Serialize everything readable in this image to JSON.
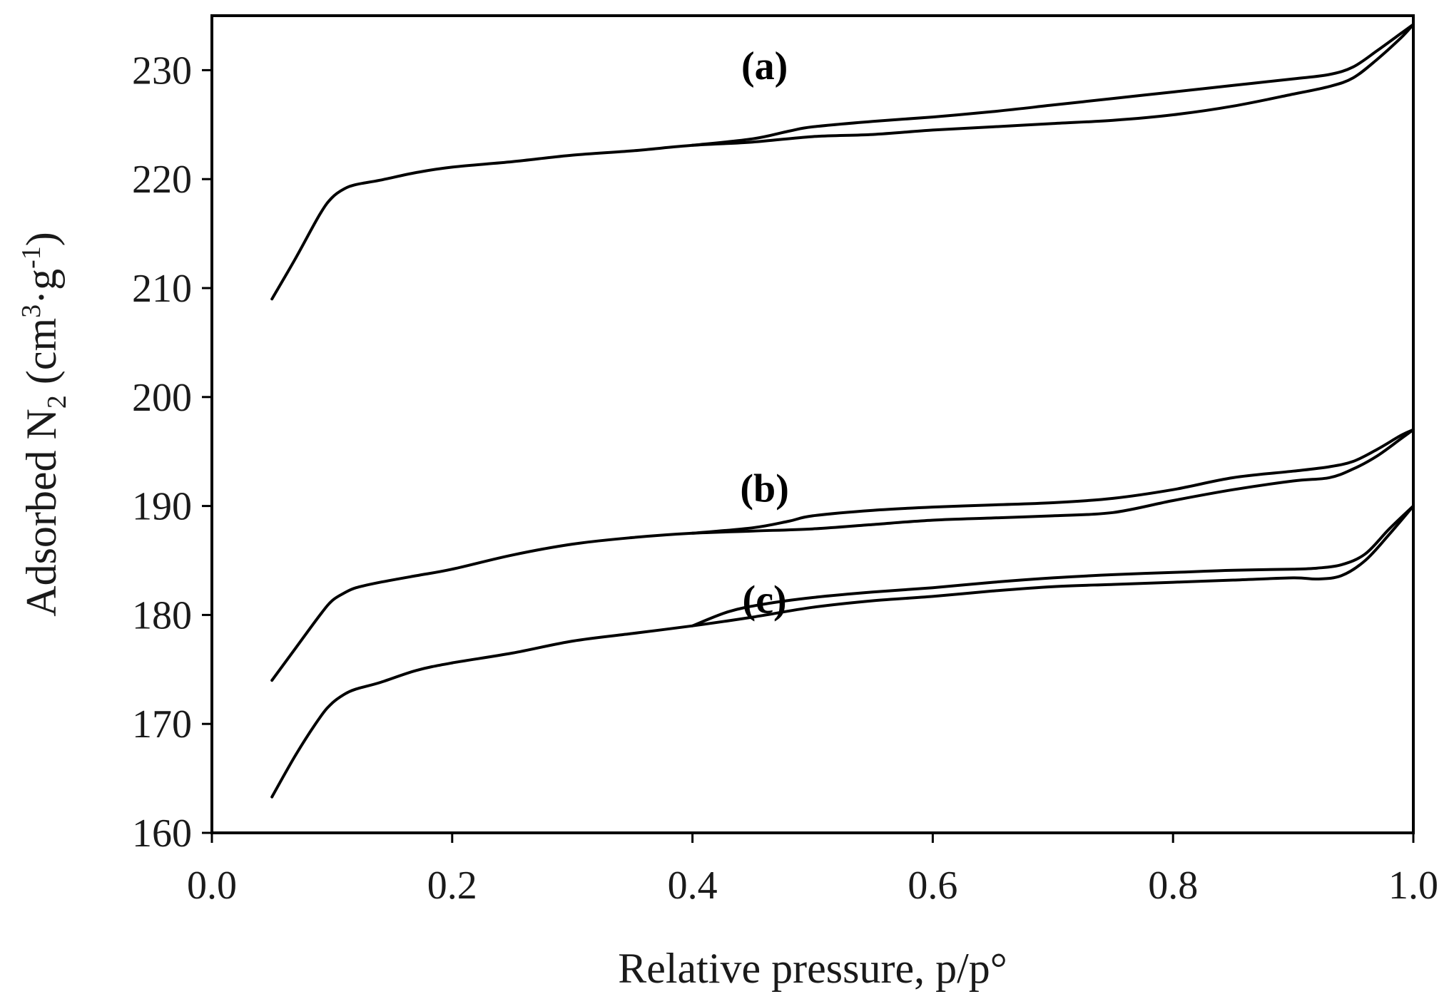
{
  "chart_data": {
    "type": "line",
    "title": "",
    "xlabel": "Relative pressure, p/p°",
    "ylabel": {
      "main": "Adsorbed N",
      "sub": "2",
      "unit_open": " (cm",
      "unit_sup1": "3",
      "unit_mid": "·g",
      "unit_sup2": "-1",
      "unit_close": ")"
    },
    "xlim": [
      0.0,
      1.0
    ],
    "ylim": [
      160,
      235
    ],
    "xticks": [
      "0.0",
      "0.2",
      "0.4",
      "0.6",
      "0.8",
      "1.0"
    ],
    "xtick_values": [
      0.0,
      0.2,
      0.4,
      0.6,
      0.8,
      1.0
    ],
    "yticks": [
      "160",
      "170",
      "180",
      "190",
      "200",
      "210",
      "220",
      "230"
    ],
    "ytick_values": [
      160,
      170,
      180,
      190,
      200,
      210,
      220,
      230
    ],
    "grid": false,
    "line_color": "#000000",
    "series": [
      {
        "name": "(a) adsorption",
        "x": [
          0.05,
          0.07,
          0.09,
          0.1,
          0.11,
          0.12,
          0.14,
          0.17,
          0.2,
          0.25,
          0.3,
          0.35,
          0.4,
          0.45,
          0.5,
          0.55,
          0.6,
          0.65,
          0.7,
          0.75,
          0.8,
          0.85,
          0.9,
          0.93,
          0.95,
          0.97,
          0.99,
          1.0
        ],
        "y": [
          209.0,
          212.8,
          216.8,
          218.3,
          219.1,
          219.5,
          219.9,
          220.6,
          221.1,
          221.6,
          222.2,
          222.6,
          223.1,
          223.4,
          223.9,
          224.1,
          224.5,
          224.8,
          225.1,
          225.4,
          225.9,
          226.7,
          227.8,
          228.5,
          229.3,
          231.0,
          233.0,
          234.2
        ]
      },
      {
        "name": "(a) desorption",
        "x": [
          0.4,
          0.45,
          0.48,
          0.5,
          0.55,
          0.6,
          0.65,
          0.7,
          0.75,
          0.8,
          0.85,
          0.9,
          0.93,
          0.95,
          0.97,
          0.99,
          1.0
        ],
        "y": [
          223.1,
          223.7,
          224.4,
          224.8,
          225.3,
          225.7,
          226.2,
          226.8,
          227.4,
          228.0,
          228.6,
          229.2,
          229.6,
          230.3,
          231.8,
          233.4,
          234.2
        ]
      },
      {
        "name": "(b) adsorption",
        "x": [
          0.05,
          0.07,
          0.09,
          0.1,
          0.11,
          0.12,
          0.14,
          0.17,
          0.2,
          0.25,
          0.3,
          0.35,
          0.4,
          0.45,
          0.5,
          0.55,
          0.6,
          0.65,
          0.7,
          0.75,
          0.8,
          0.85,
          0.9,
          0.93,
          0.95,
          0.97,
          0.99,
          1.0
        ],
        "y": [
          174.0,
          177.0,
          180.0,
          181.3,
          182.0,
          182.5,
          183.0,
          183.6,
          184.2,
          185.5,
          186.5,
          187.1,
          187.5,
          187.7,
          187.9,
          188.3,
          188.7,
          188.9,
          189.1,
          189.4,
          190.5,
          191.5,
          192.3,
          192.6,
          193.4,
          194.6,
          196.2,
          197.0
        ]
      },
      {
        "name": "(b) desorption",
        "x": [
          0.4,
          0.45,
          0.48,
          0.5,
          0.55,
          0.6,
          0.65,
          0.7,
          0.75,
          0.8,
          0.85,
          0.9,
          0.93,
          0.95,
          0.97,
          0.99,
          1.0
        ],
        "y": [
          187.5,
          188.0,
          188.6,
          189.1,
          189.6,
          189.9,
          190.1,
          190.3,
          190.7,
          191.5,
          192.6,
          193.2,
          193.6,
          194.1,
          195.2,
          196.5,
          197.0
        ]
      },
      {
        "name": "(c) adsorption",
        "x": [
          0.05,
          0.07,
          0.09,
          0.1,
          0.11,
          0.12,
          0.14,
          0.17,
          0.2,
          0.25,
          0.3,
          0.35,
          0.4,
          0.45,
          0.5,
          0.55,
          0.6,
          0.65,
          0.7,
          0.75,
          0.8,
          0.85,
          0.9,
          0.92,
          0.94,
          0.96,
          0.98,
          1.0
        ],
        "y": [
          163.3,
          167.2,
          170.6,
          171.9,
          172.7,
          173.2,
          173.8,
          174.9,
          175.6,
          176.5,
          177.6,
          178.3,
          179.0,
          179.8,
          180.7,
          181.3,
          181.7,
          182.2,
          182.6,
          182.8,
          183.0,
          183.2,
          183.4,
          183.3,
          183.6,
          185.0,
          187.4,
          190.0
        ]
      },
      {
        "name": "(c) desorption",
        "x": [
          0.4,
          0.43,
          0.46,
          0.5,
          0.55,
          0.6,
          0.65,
          0.7,
          0.75,
          0.8,
          0.85,
          0.9,
          0.92,
          0.94,
          0.96,
          0.98,
          1.0
        ],
        "y": [
          179.0,
          180.3,
          181.0,
          181.6,
          182.1,
          182.5,
          183.0,
          183.4,
          183.7,
          183.9,
          184.1,
          184.2,
          184.3,
          184.6,
          185.6,
          187.9,
          190.0
        ]
      }
    ],
    "annotations": [
      {
        "text": "(a)",
        "x": 0.46,
        "y": 230.5
      },
      {
        "text": "(b)",
        "x": 0.46,
        "y": 191.7
      },
      {
        "text": "(c)",
        "x": 0.46,
        "y": 181.5
      }
    ]
  }
}
